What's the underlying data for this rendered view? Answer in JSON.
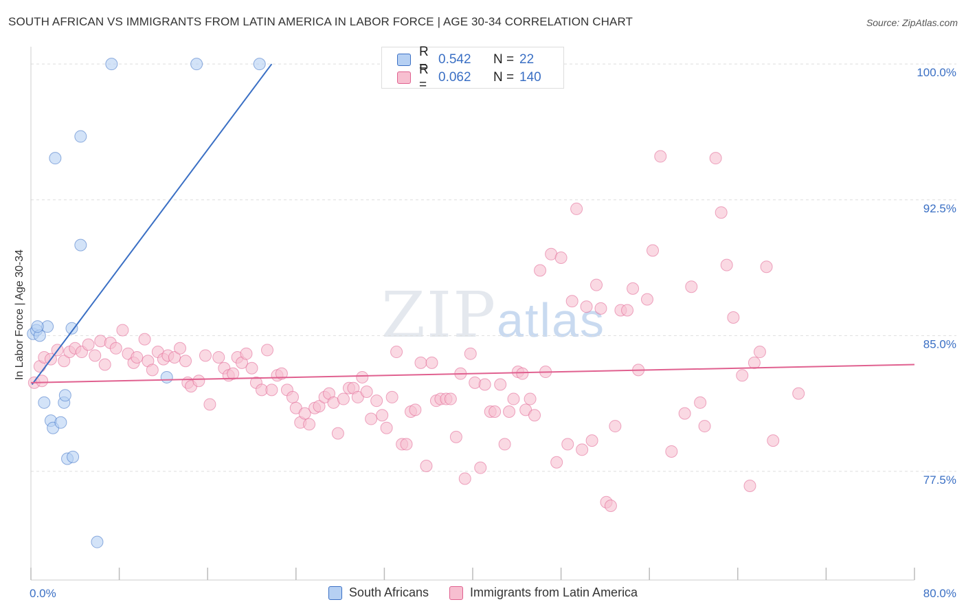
{
  "title": "SOUTH AFRICAN VS IMMIGRANTS FROM LATIN AMERICA IN LABOR FORCE | AGE 30-34 CORRELATION CHART",
  "source": "Source: ZipAtlas.com",
  "watermark": {
    "zip": "ZIP",
    "atlas": "atlas"
  },
  "colors": {
    "blue": "#3a6fc4",
    "blue_fill": "#b6d0f3",
    "pink": "#e0608f",
    "pink_fill": "#f7bfd0",
    "grid": "#dddddd"
  },
  "legend": {
    "rows": [
      {
        "r_label": "R =",
        "r_value": "0.542",
        "n_label": "N =",
        "n_value": "22"
      },
      {
        "r_label": "R =",
        "r_value": "0.062",
        "n_label": "N =",
        "n_value": "140"
      }
    ]
  },
  "bottom_legend": [
    "South Africans",
    "Immigrants from Latin America"
  ],
  "chart_data": {
    "type": "scatter",
    "ylabel": "In Labor Force | Age 30-34",
    "xlim": [
      0,
      80
    ],
    "ylim": [
      71.5,
      100.5
    ],
    "x_tick_labels": {
      "left": "0.0%",
      "right": "80.0%"
    },
    "y_ticks": [
      100.0,
      92.5,
      85.0,
      77.5
    ],
    "y_tick_labels": [
      "100.0%",
      "92.5%",
      "85.0%",
      "77.5%"
    ],
    "series": [
      {
        "name": "South Africans",
        "color": "#3a6fc4",
        "trend": {
          "x0": 0.1,
          "y0": 82.3,
          "x1": 21.8,
          "y1": 100.0
        },
        "points": [
          [
            0.2,
            85.1
          ],
          [
            0.5,
            85.3
          ],
          [
            0.8,
            85.0
          ],
          [
            1.5,
            85.5
          ],
          [
            1.2,
            81.3
          ],
          [
            1.8,
            80.3
          ],
          [
            2.0,
            79.9
          ],
          [
            2.7,
            80.2
          ],
          [
            3.0,
            81.3
          ],
          [
            3.1,
            81.7
          ],
          [
            3.3,
            78.2
          ],
          [
            3.8,
            78.3
          ],
          [
            3.7,
            85.4
          ],
          [
            4.5,
            96.0
          ],
          [
            2.2,
            94.8
          ],
          [
            4.5,
            90.0
          ],
          [
            7.3,
            100.0
          ],
          [
            15.0,
            100.0
          ],
          [
            20.7,
            100.0
          ],
          [
            12.3,
            82.7
          ],
          [
            6.0,
            73.6
          ],
          [
            0.6,
            85.5
          ]
        ]
      },
      {
        "name": "Immigrants from Latin America",
        "color": "#e0608f",
        "trend": {
          "x0": 0,
          "y0": 82.4,
          "x1": 80,
          "y1": 83.4
        },
        "points": [
          [
            0.3,
            82.4
          ],
          [
            0.8,
            83.3
          ],
          [
            1.2,
            83.8
          ],
          [
            1.8,
            83.7
          ],
          [
            2.4,
            84.2
          ],
          [
            3.0,
            83.6
          ],
          [
            3.5,
            84.1
          ],
          [
            4.0,
            84.3
          ],
          [
            4.6,
            84.1
          ],
          [
            5.2,
            84.5
          ],
          [
            5.8,
            83.9
          ],
          [
            6.3,
            84.7
          ],
          [
            6.7,
            83.4
          ],
          [
            7.2,
            84.6
          ],
          [
            7.7,
            84.3
          ],
          [
            8.3,
            85.3
          ],
          [
            8.8,
            84.0
          ],
          [
            9.3,
            83.5
          ],
          [
            9.6,
            83.8
          ],
          [
            10.3,
            84.8
          ],
          [
            10.6,
            83.6
          ],
          [
            11.0,
            83.1
          ],
          [
            11.5,
            84.1
          ],
          [
            12.0,
            83.7
          ],
          [
            12.4,
            83.9
          ],
          [
            13.0,
            83.8
          ],
          [
            13.5,
            84.3
          ],
          [
            14.0,
            83.6
          ],
          [
            14.2,
            82.4
          ],
          [
            14.5,
            82.2
          ],
          [
            15.2,
            82.5
          ],
          [
            15.8,
            83.9
          ],
          [
            16.2,
            81.2
          ],
          [
            17.0,
            83.8
          ],
          [
            17.5,
            83.2
          ],
          [
            17.9,
            82.8
          ],
          [
            18.3,
            82.9
          ],
          [
            18.7,
            83.8
          ],
          [
            19.1,
            83.5
          ],
          [
            19.5,
            84.0
          ],
          [
            20.0,
            83.2
          ],
          [
            20.4,
            82.4
          ],
          [
            20.9,
            82.0
          ],
          [
            21.4,
            84.2
          ],
          [
            21.8,
            82.0
          ],
          [
            22.3,
            82.8
          ],
          [
            22.7,
            82.9
          ],
          [
            23.2,
            82.0
          ],
          [
            23.7,
            81.6
          ],
          [
            24.0,
            81.0
          ],
          [
            24.4,
            80.2
          ],
          [
            24.8,
            80.7
          ],
          [
            25.2,
            80.1
          ],
          [
            25.7,
            81.0
          ],
          [
            26.1,
            81.1
          ],
          [
            26.6,
            81.6
          ],
          [
            27.0,
            81.8
          ],
          [
            27.4,
            81.3
          ],
          [
            27.8,
            79.6
          ],
          [
            28.3,
            81.5
          ],
          [
            28.8,
            82.1
          ],
          [
            29.2,
            82.1
          ],
          [
            29.6,
            81.6
          ],
          [
            30.0,
            82.7
          ],
          [
            30.4,
            81.9
          ],
          [
            30.8,
            80.4
          ],
          [
            31.3,
            81.4
          ],
          [
            31.8,
            80.6
          ],
          [
            32.2,
            79.9
          ],
          [
            32.7,
            81.6
          ],
          [
            33.1,
            84.1
          ],
          [
            33.6,
            79.0
          ],
          [
            34.0,
            79.0
          ],
          [
            34.4,
            80.8
          ],
          [
            34.8,
            80.9
          ],
          [
            35.3,
            83.5
          ],
          [
            35.8,
            77.8
          ],
          [
            36.3,
            83.5
          ],
          [
            36.7,
            81.4
          ],
          [
            37.1,
            81.5
          ],
          [
            37.6,
            81.5
          ],
          [
            38.0,
            81.5
          ],
          [
            38.5,
            79.4
          ],
          [
            38.9,
            82.9
          ],
          [
            39.3,
            77.1
          ],
          [
            39.8,
            84.0
          ],
          [
            40.2,
            82.4
          ],
          [
            40.7,
            77.7
          ],
          [
            41.1,
            82.3
          ],
          [
            41.6,
            80.8
          ],
          [
            42.0,
            80.8
          ],
          [
            42.5,
            82.3
          ],
          [
            42.9,
            79.0
          ],
          [
            43.3,
            80.8
          ],
          [
            43.7,
            81.5
          ],
          [
            44.1,
            83.0
          ],
          [
            44.5,
            82.9
          ],
          [
            44.8,
            80.9
          ],
          [
            45.2,
            81.5
          ],
          [
            45.6,
            80.6
          ],
          [
            46.1,
            88.6
          ],
          [
            46.6,
            83.0
          ],
          [
            47.1,
            89.5
          ],
          [
            47.6,
            78.0
          ],
          [
            48.0,
            89.3
          ],
          [
            48.6,
            79.0
          ],
          [
            49.0,
            86.9
          ],
          [
            49.4,
            92.0
          ],
          [
            49.9,
            78.7
          ],
          [
            50.3,
            86.6
          ],
          [
            50.8,
            79.2
          ],
          [
            51.2,
            87.8
          ],
          [
            51.6,
            86.5
          ],
          [
            52.1,
            75.8
          ],
          [
            52.5,
            75.6
          ],
          [
            52.9,
            80.0
          ],
          [
            53.4,
            86.4
          ],
          [
            54.0,
            86.4
          ],
          [
            54.5,
            87.6
          ],
          [
            55.0,
            83.1
          ],
          [
            55.8,
            87.0
          ],
          [
            56.3,
            89.7
          ],
          [
            57.0,
            94.9
          ],
          [
            58.0,
            78.6
          ],
          [
            59.2,
            80.7
          ],
          [
            59.8,
            87.7
          ],
          [
            60.6,
            81.3
          ],
          [
            61.0,
            80.0
          ],
          [
            62.0,
            94.8
          ],
          [
            62.5,
            91.8
          ],
          [
            63.0,
            88.9
          ],
          [
            63.6,
            86.0
          ],
          [
            64.4,
            82.8
          ],
          [
            65.1,
            76.7
          ],
          [
            65.5,
            83.5
          ],
          [
            66.0,
            84.1
          ],
          [
            66.6,
            88.8
          ],
          [
            67.2,
            79.2
          ],
          [
            69.5,
            81.8
          ],
          [
            1.0,
            82.5
          ]
        ]
      }
    ]
  }
}
